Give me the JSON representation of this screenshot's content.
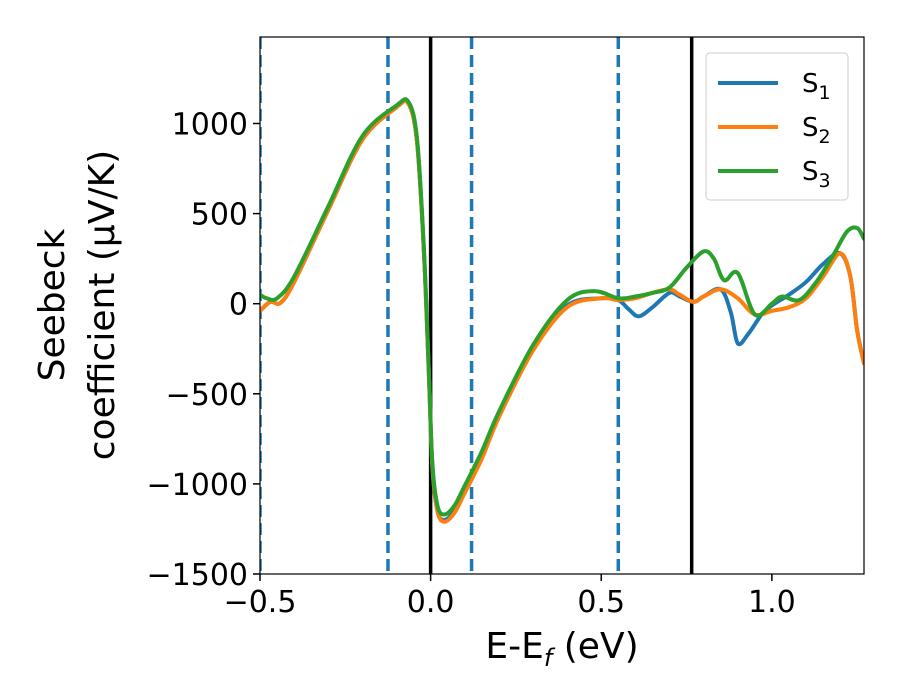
{
  "chart_data": {
    "type": "line",
    "xlabel": "E-E",
    "xlabel_sub": "f",
    "xlabel_unit": " (eV)",
    "ylabel_line1": "Seebeck",
    "ylabel_line2": "coefficient  (μV/K)",
    "xlim": [
      -0.5,
      1.27
    ],
    "ylim": [
      -1500,
      1480
    ],
    "xticks": [
      -0.5,
      0.0,
      0.5,
      1.0
    ],
    "xtick_labels": [
      "−0.5",
      "0.0",
      "0.5",
      "1.0"
    ],
    "yticks": [
      1000,
      500,
      0,
      -500,
      -1000,
      -1500
    ],
    "ytick_labels": [
      "1000",
      "500",
      "0",
      "−500",
      "−1000",
      "−1500"
    ],
    "grid": false,
    "legend_position": "top-right",
    "vlines_dashed": [
      -0.5,
      -0.125,
      0.12,
      0.55
    ],
    "vlines_solid": [
      0.0,
      0.765
    ],
    "vline_dashed_color": "#1f77b4",
    "vline_solid_color": "#000000",
    "series": [
      {
        "name": "S",
        "subscript": "1",
        "color": "#1f77b4",
        "x": [
          -0.5,
          -0.47,
          -0.44,
          -0.4,
          -0.3,
          -0.2,
          -0.1,
          -0.065,
          -0.04,
          -0.02,
          -0.005,
          0.005,
          0.02,
          0.04,
          0.07,
          0.1,
          0.15,
          0.2,
          0.3,
          0.4,
          0.5,
          0.55,
          0.58,
          0.61,
          0.65,
          0.7,
          0.73,
          0.77,
          0.8,
          0.85,
          0.88,
          0.9,
          0.93,
          0.97,
          1.0,
          1.05,
          1.1,
          1.15,
          1.2,
          1.23,
          1.25,
          1.27
        ],
        "y": [
          -40,
          10,
          5,
          120,
          520,
          910,
          1090,
          1110,
          900,
          300,
          -400,
          -900,
          -1150,
          -1200,
          -1150,
          -1040,
          -850,
          -620,
          -250,
          -10,
          30,
          20,
          -30,
          -70,
          -20,
          60,
          40,
          10,
          40,
          80,
          -50,
          -220,
          -170,
          -60,
          -10,
          50,
          120,
          220,
          280,
          150,
          -150,
          -330
        ]
      },
      {
        "name": "S",
        "subscript": "2",
        "color": "#ff7f0e",
        "x": [
          -0.5,
          -0.47,
          -0.44,
          -0.4,
          -0.3,
          -0.2,
          -0.1,
          -0.065,
          -0.04,
          -0.02,
          -0.005,
          0.005,
          0.02,
          0.04,
          0.07,
          0.1,
          0.15,
          0.2,
          0.3,
          0.4,
          0.5,
          0.55,
          0.6,
          0.65,
          0.7,
          0.73,
          0.77,
          0.8,
          0.85,
          0.9,
          0.95,
          1.0,
          1.05,
          1.1,
          1.15,
          1.2,
          1.23,
          1.25,
          1.27
        ],
        "y": [
          -40,
          10,
          5,
          120,
          520,
          910,
          1090,
          1110,
          900,
          300,
          -400,
          -900,
          -1150,
          -1210,
          -1160,
          -1050,
          -860,
          -630,
          -260,
          -20,
          30,
          20,
          30,
          60,
          80,
          50,
          10,
          40,
          80,
          30,
          -60,
          -40,
          -20,
          30,
          150,
          280,
          150,
          -150,
          -330
        ]
      },
      {
        "name": "S",
        "subscript": "3",
        "color": "#2ca02c",
        "x": [
          -0.5,
          -0.48,
          -0.45,
          -0.4,
          -0.3,
          -0.2,
          -0.1,
          -0.065,
          -0.04,
          -0.02,
          -0.005,
          0.005,
          0.02,
          0.04,
          0.07,
          0.1,
          0.15,
          0.2,
          0.3,
          0.4,
          0.48,
          0.55,
          0.6,
          0.65,
          0.7,
          0.75,
          0.8,
          0.83,
          0.86,
          0.9,
          0.95,
          1.0,
          1.03,
          1.08,
          1.13,
          1.18,
          1.22,
          1.25,
          1.27
        ],
        "y": [
          50,
          30,
          30,
          150,
          540,
          930,
          1100,
          1120,
          920,
          320,
          -380,
          -880,
          -1120,
          -1170,
          -1120,
          -1010,
          -820,
          -600,
          -230,
          20,
          70,
          30,
          40,
          60,
          90,
          200,
          290,
          250,
          130,
          170,
          -60,
          0,
          40,
          20,
          120,
          270,
          400,
          420,
          360
        ]
      }
    ]
  }
}
